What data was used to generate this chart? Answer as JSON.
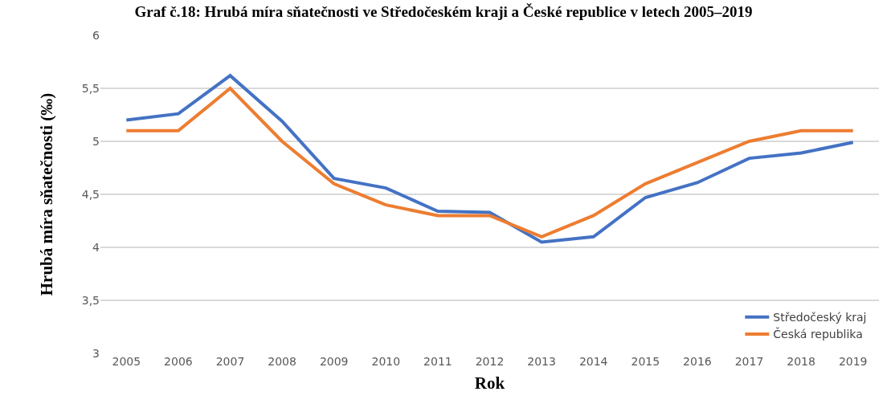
{
  "chart_data": {
    "type": "line",
    "title": "Graf č.18: Hrubá míra sňatečnosti ve Středočeském kraji a České republice v letech 2005–2019",
    "xlabel": "Rok",
    "ylabel": "Hrubá míra sňatečnosti (‰)",
    "categories": [
      "2005",
      "2006",
      "2007",
      "2008",
      "2009",
      "2010",
      "2011",
      "2012",
      "2013",
      "2014",
      "2015",
      "2016",
      "2017",
      "2018",
      "2019"
    ],
    "series": [
      {
        "name": "Středočeský kraj",
        "color": "#4472c4",
        "values": [
          5.2,
          5.26,
          5.62,
          5.19,
          4.65,
          4.56,
          4.34,
          4.33,
          4.05,
          4.1,
          4.47,
          4.61,
          4.84,
          4.89,
          4.99
        ]
      },
      {
        "name": "Česká republika",
        "color": "#ed7d31",
        "values": [
          5.1,
          5.1,
          5.5,
          5.0,
          4.6,
          4.4,
          4.3,
          4.3,
          4.1,
          4.3,
          4.6,
          4.8,
          5.0,
          5.1,
          5.1
        ]
      }
    ],
    "ylim": [
      3,
      6
    ],
    "yticks": [
      3,
      {
        "value": 3.5,
        "label": "3,5"
      },
      4,
      {
        "value": 4.5,
        "label": "4,5"
      },
      5,
      {
        "value": 5.5,
        "label": "5,5"
      },
      6
    ],
    "grid": "y",
    "legend": "bottom right",
    "marker": "none",
    "line_style": "solid"
  }
}
